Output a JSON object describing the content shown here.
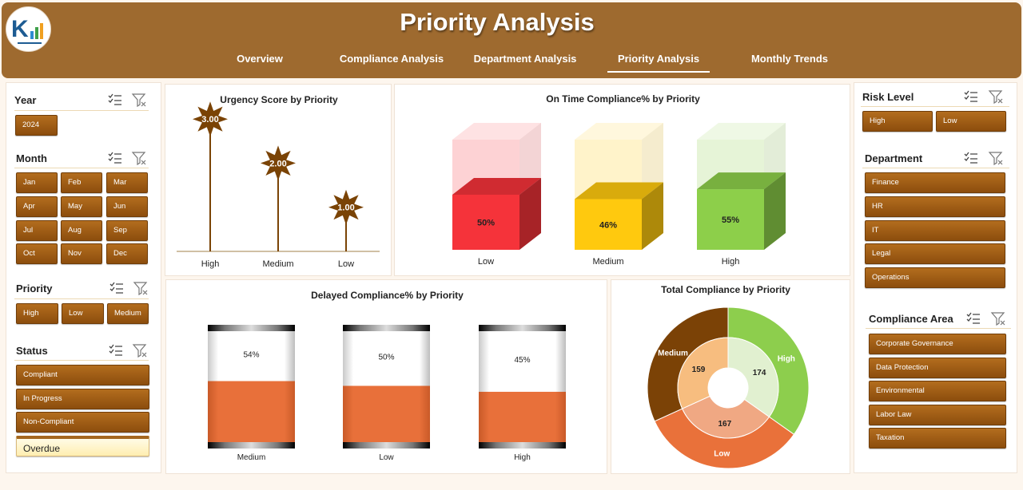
{
  "header": {
    "title": "Priority Analysis",
    "tabs": [
      {
        "label": "Overview"
      },
      {
        "label": "Compliance Analysis"
      },
      {
        "label": "Department Analysis"
      },
      {
        "label": "Priority Analysis"
      },
      {
        "label": "Monthly Trends"
      }
    ],
    "active_tab": "Priority Analysis"
  },
  "slicers_left": {
    "year": {
      "title": "Year",
      "items": [
        "2024"
      ]
    },
    "month": {
      "title": "Month",
      "items": [
        "Jan",
        "Feb",
        "Mar",
        "Apr",
        "May",
        "Jun",
        "Jul",
        "Aug",
        "Sep",
        "Oct",
        "Nov",
        "Dec"
      ]
    },
    "priority": {
      "title": "Priority",
      "items": [
        "High",
        "Low",
        "Medium"
      ]
    },
    "status": {
      "title": "Status",
      "items": [
        "Compliant",
        "In Progress",
        "Non-Compliant",
        "Overdue"
      ]
    }
  },
  "slicers_right": {
    "risk_level": {
      "title": "Risk Level",
      "items": [
        "High",
        "Low"
      ]
    },
    "department": {
      "title": "Department",
      "items": [
        "Finance",
        "HR",
        "IT",
        "Legal",
        "Operations"
      ]
    },
    "compliance_area": {
      "title": "Compliance Area",
      "items": [
        "Corporate Governance",
        "Data Protection",
        "Environmental",
        "Labor Law",
        "Taxation"
      ]
    }
  },
  "colors": {
    "header_bg": "#9e6a2f",
    "slicer_button": "#9a5a14",
    "urgency_marker": "#7a4305",
    "delayed_fill": "#e8703a"
  },
  "chart_data": [
    {
      "type": "line",
      "title": "Urgency Score by Priority",
      "categories": [
        "High",
        "Medium",
        "Low"
      ],
      "values": [
        3.0,
        2.0,
        1.0
      ],
      "data_labels": [
        "3.00",
        "2.00",
        "1.00"
      ],
      "ylim": [
        0,
        3.6
      ]
    },
    {
      "type": "bar",
      "title": "On Time Compliance% by Priority",
      "categories": [
        "Low",
        "Medium",
        "High"
      ],
      "values": [
        50,
        46,
        55
      ],
      "data_labels": [
        "50%",
        "46%",
        "55%"
      ],
      "colors": [
        "#f5333a",
        "#ffc90e",
        "#8dcf4a"
      ],
      "ylim": [
        0,
        100
      ]
    },
    {
      "type": "bar",
      "title": "Delayed Compliance% by Priority",
      "categories": [
        "Medium",
        "Low",
        "High"
      ],
      "values": [
        54,
        50,
        45
      ],
      "data_labels": [
        "54%",
        "50%",
        "45%"
      ],
      "ylim": [
        0,
        100
      ]
    },
    {
      "type": "pie",
      "title": "Total Compliance by Priority",
      "categories": [
        "High",
        "Low",
        "Medium"
      ],
      "values": [
        174,
        167,
        159
      ],
      "outer_colors": [
        "#8dce4d",
        "#e9713a",
        "#7b4206"
      ],
      "inner_colors": [
        "#e1f0d0",
        "#f0a883",
        "#f7bd7f"
      ]
    }
  ]
}
